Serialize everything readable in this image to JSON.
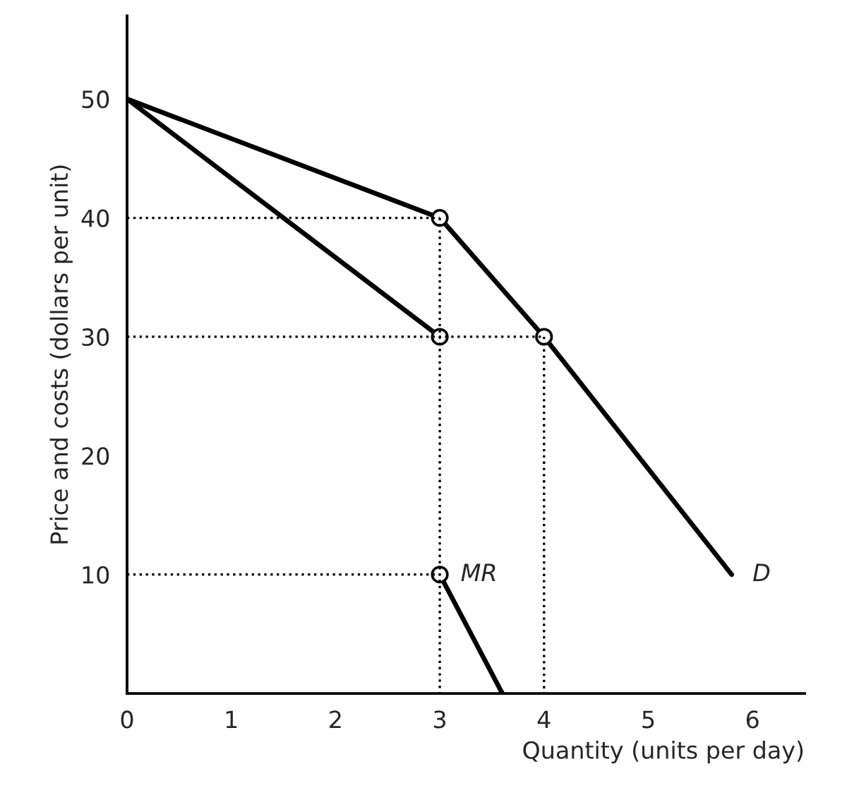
{
  "chart_data": {
    "type": "line",
    "xlabel": "Quantity (units per day)",
    "ylabel": "Price and costs (dollars per unit)",
    "xlim": [
      0,
      6.5
    ],
    "ylim": [
      0,
      57
    ],
    "xticks": [
      0,
      1,
      2,
      3,
      4,
      5,
      6
    ],
    "yticks": [
      10,
      20,
      30,
      40,
      50
    ],
    "grid": false,
    "legend": false,
    "series": [
      {
        "line_style": "dotted",
        "color": "#000000",
        "x": [
          0,
          3
        ],
        "values": [
          40,
          40
        ]
      },
      {
        "line_style": "dotted",
        "color": "#000000",
        "x": [
          0,
          4
        ],
        "values": [
          30,
          30
        ]
      },
      {
        "line_style": "dotted",
        "color": "#000000",
        "x": [
          0,
          3
        ],
        "values": [
          10,
          10
        ]
      },
      {
        "line_style": "dotted",
        "color": "#000000",
        "x": [
          3,
          3
        ],
        "values": [
          40,
          0
        ]
      },
      {
        "line_style": "dotted",
        "color": "#000000",
        "x": [
          4,
          4
        ],
        "values": [
          30,
          0
        ]
      },
      {
        "name": "D",
        "line_style": "solid",
        "color": "#000000",
        "x": [
          0,
          3,
          4,
          5.8
        ],
        "values": [
          50,
          40,
          30,
          10
        ]
      },
      {
        "name": "MR",
        "line_style": "solid",
        "color": "#000000",
        "x": [
          0,
          3,
          null,
          3,
          3.6
        ],
        "values": [
          50,
          30,
          null,
          10,
          0
        ]
      },
      {
        "type": "scatter",
        "marker": "circle",
        "color": "#000000",
        "x": [
          3,
          4,
          3,
          3
        ],
        "values": [
          40,
          30,
          30,
          10
        ]
      }
    ]
  }
}
